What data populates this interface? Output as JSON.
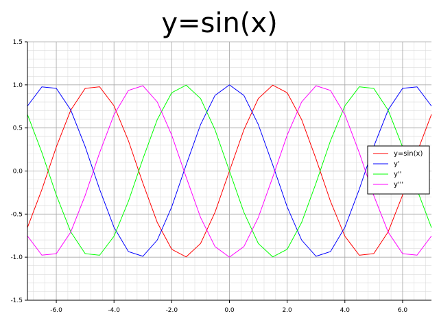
{
  "chart_data": {
    "type": "line",
    "title": "y=sin(x)",
    "xlabel": "",
    "ylabel": "",
    "xlim": [
      -7.0,
      7.0
    ],
    "ylim": [
      -1.5,
      1.5
    ],
    "x_ticks": [
      -6.0,
      -4.0,
      -2.0,
      0.0,
      2.0,
      4.0,
      6.0
    ],
    "x_tick_labels": [
      "-6.0",
      "-4.0",
      "-2.0",
      "0.0",
      "2.0",
      "4.0",
      "6.0"
    ],
    "y_ticks": [
      -1.5,
      -1.0,
      -0.5,
      0.0,
      0.5,
      1.0,
      1.5
    ],
    "y_tick_labels": [
      "-1.5",
      "-1.0",
      "-0.5",
      "0.0",
      "0.5",
      "1.0",
      "1.5"
    ],
    "grid": true,
    "legend_position": "right",
    "x": [
      -7.0,
      -6.5,
      -6.0,
      -5.5,
      -5.0,
      -4.5,
      -4.0,
      -3.5,
      -3.0,
      -2.5,
      -2.0,
      -1.5,
      -1.0,
      -0.5,
      0.0,
      0.5,
      1.0,
      1.5,
      2.0,
      2.5,
      3.0,
      3.5,
      4.0,
      4.5,
      5.0,
      5.5,
      6.0,
      6.5,
      7.0
    ],
    "series": [
      {
        "name": "y=sin(x)",
        "color": "#ff0000",
        "values": [
          -0.657,
          -0.215,
          0.279,
          0.706,
          0.959,
          0.978,
          0.757,
          0.351,
          -0.141,
          -0.598,
          -0.909,
          -0.997,
          -0.841,
          -0.479,
          0.0,
          0.479,
          0.841,
          0.997,
          0.909,
          0.598,
          0.141,
          -0.351,
          -0.757,
          -0.978,
          -0.959,
          -0.706,
          -0.279,
          0.215,
          0.657
        ]
      },
      {
        "name": "y'",
        "color": "#0000ff",
        "values": [
          0.754,
          0.977,
          0.96,
          0.709,
          0.284,
          -0.211,
          -0.654,
          -0.936,
          -0.99,
          -0.801,
          -0.416,
          0.071,
          0.54,
          0.878,
          1.0,
          0.878,
          0.54,
          0.071,
          -0.416,
          -0.801,
          -0.99,
          -0.936,
          -0.654,
          -0.211,
          0.284,
          0.709,
          0.96,
          0.977,
          0.754
        ]
      },
      {
        "name": "y''",
        "color": "#00ff00",
        "values": [
          0.657,
          0.215,
          -0.279,
          -0.706,
          -0.959,
          -0.978,
          -0.757,
          -0.351,
          0.141,
          0.598,
          0.909,
          0.997,
          0.841,
          0.479,
          0.0,
          -0.479,
          -0.841,
          -0.997,
          -0.909,
          -0.598,
          -0.141,
          0.351,
          0.757,
          0.978,
          0.959,
          0.706,
          0.279,
          -0.215,
          -0.657
        ]
      },
      {
        "name": "y'''",
        "color": "#ff00ff",
        "values": [
          -0.754,
          -0.977,
          -0.96,
          -0.709,
          -0.284,
          0.211,
          0.654,
          0.936,
          0.99,
          0.801,
          0.416,
          -0.071,
          -0.54,
          -0.878,
          -1.0,
          -0.878,
          -0.54,
          -0.071,
          0.416,
          0.801,
          0.99,
          0.936,
          0.654,
          0.211,
          -0.284,
          -0.709,
          -0.96,
          -0.977,
          -0.754
        ]
      }
    ]
  }
}
